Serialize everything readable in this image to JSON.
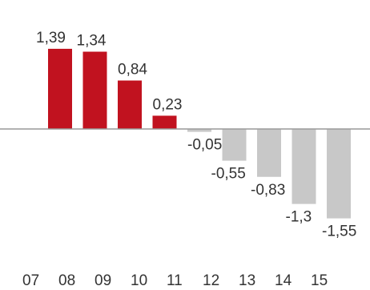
{
  "chart_data": {
    "type": "bar",
    "categories": [
      "07",
      "08",
      "09",
      "10",
      "11",
      "12",
      "13",
      "14",
      "15"
    ],
    "values": [
      1.39,
      1.34,
      0.84,
      0.23,
      -0.05,
      -0.55,
      -0.83,
      -1.3,
      -1.55
    ],
    "value_labels": [
      "1,39",
      "1,34",
      "0,84",
      "0,23",
      "-0,05",
      "-0,55",
      "-0,83",
      "-1,3",
      "-1,55"
    ],
    "title": "",
    "xlabel": "",
    "ylabel": "",
    "ylim": [
      -1.55,
      1.39
    ],
    "grid": false,
    "colors": {
      "positive": "#c1121f",
      "negative": "#c8c8c8",
      "axis": "#999999",
      "text": "#333333"
    }
  }
}
